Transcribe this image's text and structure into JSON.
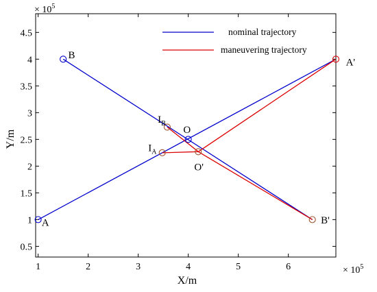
{
  "chart_data": {
    "type": "line",
    "xlabel": "X/m",
    "ylabel": "Y/m",
    "x_multiplier": {
      "base": "× 10",
      "exponent": "5"
    },
    "y_multiplier": {
      "base": "× 10",
      "exponent": "5"
    },
    "xlim": [
      0.95,
      6.95
    ],
    "ylim": [
      0.3,
      4.85
    ],
    "xticks": [
      1,
      2,
      3,
      4,
      5,
      6
    ],
    "xtick_labels": [
      "1",
      "2",
      "3",
      "4",
      "5",
      "6"
    ],
    "yticks": [
      0.5,
      1,
      1.5,
      2,
      2.5,
      3,
      3.5,
      4,
      4.5
    ],
    "ytick_labels": [
      "0.5",
      "1",
      "1.5",
      "2",
      "2.5",
      "3",
      "3.5",
      "4",
      "4.5"
    ],
    "grid": false,
    "legend": {
      "position": "top-right"
    },
    "series": [
      {
        "name": "nominal trajectory",
        "color": "#0000cc",
        "segments": [
          [
            [
              1.0,
              1.0
            ],
            [
              6.95,
              4.0
            ]
          ],
          [
            [
              1.5,
              4.0
            ],
            [
              6.48,
              1.0
            ]
          ]
        ]
      },
      {
        "name": "maneuvering trajectory",
        "color": "#dd0000",
        "segments": [
          [
            [
              3.48,
              2.25
            ],
            [
              4.2,
              2.27
            ],
            [
              6.95,
              4.0
            ]
          ],
          [
            [
              3.58,
              2.73
            ],
            [
              4.2,
              2.27
            ],
            [
              6.48,
              1.0
            ]
          ]
        ]
      }
    ],
    "markers": [
      {
        "x": 1.0,
        "y": 1.0,
        "color": "#0000cc"
      },
      {
        "x": 1.5,
        "y": 4.0,
        "color": "#0000cc"
      },
      {
        "x": 4.0,
        "y": 2.5,
        "color": "#0000cc"
      },
      {
        "x": 6.95,
        "y": 4.0,
        "color": "#dd0000"
      },
      {
        "x": 6.48,
        "y": 1.0,
        "color": "#a0522d"
      },
      {
        "x": 3.48,
        "y": 2.25,
        "color": "#a0522d"
      },
      {
        "x": 3.58,
        "y": 2.73,
        "color": "#a0522d"
      },
      {
        "x": 4.2,
        "y": 2.27,
        "color": "#a0522d"
      }
    ],
    "annotations": [
      {
        "text": "A",
        "x": 1.07,
        "y": 0.88
      },
      {
        "text": "B",
        "x": 1.6,
        "y": 4.02
      },
      {
        "text": "O",
        "x": 3.9,
        "y": 2.62
      },
      {
        "text": "A'",
        "x": 7.15,
        "y": 3.88
      },
      {
        "text": "B'",
        "x": 6.65,
        "y": 0.93
      },
      {
        "text": "O'",
        "x": 4.12,
        "y": 1.92
      },
      {
        "text": "I",
        "sub": "A",
        "x": 3.2,
        "y": 2.28
      },
      {
        "text": "I",
        "sub": "B",
        "x": 3.39,
        "y": 2.81
      }
    ]
  }
}
